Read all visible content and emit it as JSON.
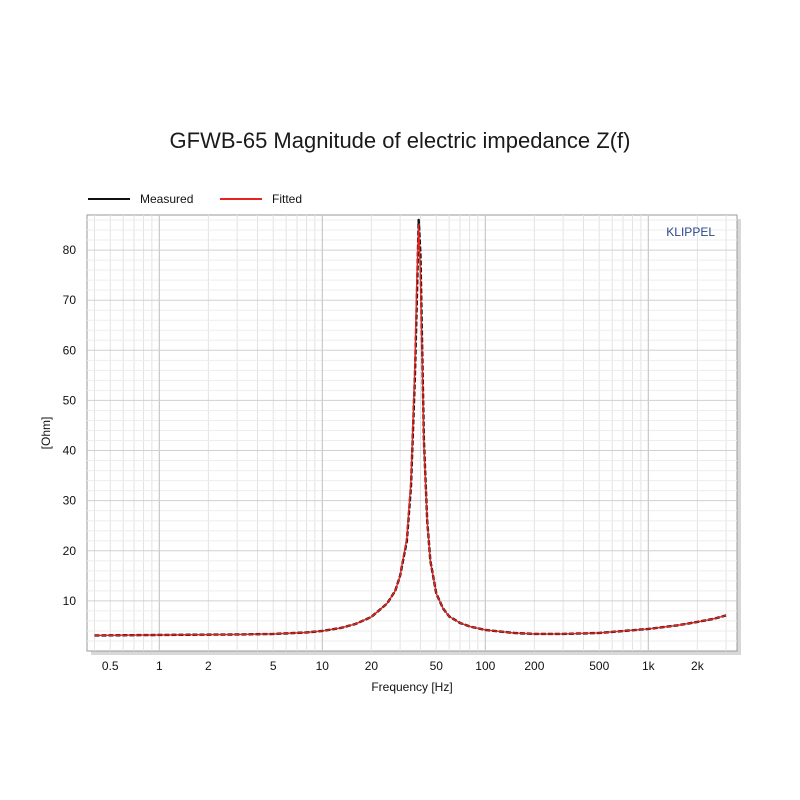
{
  "chart_data": {
    "type": "line",
    "title": "GFWB-65 Magnitude of electric impedance Z(f)",
    "xlabel": "Frequency [Hz]",
    "ylabel": "[Ohm]",
    "x_scale": "log",
    "xlim": [
      0.36,
      3500
    ],
    "ylim": [
      0,
      87
    ],
    "grid": true,
    "legend_position": "top-left",
    "brand": "KLIPPEL",
    "x_ticks": [
      {
        "value": 0.5,
        "label": "0.5"
      },
      {
        "value": 1,
        "label": "1"
      },
      {
        "value": 2,
        "label": "2"
      },
      {
        "value": 5,
        "label": "5"
      },
      {
        "value": 10,
        "label": "10"
      },
      {
        "value": 20,
        "label": "20"
      },
      {
        "value": 50,
        "label": "50"
      },
      {
        "value": 100,
        "label": "100"
      },
      {
        "value": 200,
        "label": "200"
      },
      {
        "value": 500,
        "label": "500"
      },
      {
        "value": 1000,
        "label": "1k"
      },
      {
        "value": 2000,
        "label": "2k"
      }
    ],
    "y_ticks": [
      {
        "value": 10,
        "label": "10"
      },
      {
        "value": 20,
        "label": "20"
      },
      {
        "value": 30,
        "label": "30"
      },
      {
        "value": 40,
        "label": "40"
      },
      {
        "value": 50,
        "label": "50"
      },
      {
        "value": 60,
        "label": "60"
      },
      {
        "value": 70,
        "label": "70"
      },
      {
        "value": 80,
        "label": "80"
      }
    ],
    "series": [
      {
        "name": "Measured",
        "color": "#111111",
        "x": [
          0.4,
          1,
          3,
          5,
          8,
          10,
          13,
          16,
          20,
          25,
          28,
          30,
          33,
          35,
          37,
          38,
          39,
          40,
          41,
          42,
          44,
          46,
          50,
          55,
          60,
          70,
          80,
          100,
          150,
          200,
          300,
          500,
          1000,
          1500,
          2000,
          2500,
          3000
        ],
        "y": [
          3.1,
          3.2,
          3.3,
          3.4,
          3.7,
          4.0,
          4.6,
          5.4,
          6.8,
          9.5,
          12.0,
          15.0,
          22.0,
          33.0,
          55.0,
          70.0,
          86.0,
          79.0,
          60.0,
          42.0,
          26.0,
          18.0,
          11.5,
          8.5,
          6.9,
          5.6,
          4.9,
          4.2,
          3.6,
          3.4,
          3.4,
          3.6,
          4.4,
          5.1,
          5.8,
          6.4,
          7.1
        ]
      },
      {
        "name": "Fitted",
        "color": "#e8231f",
        "x": [
          0.4,
          1,
          3,
          5,
          8,
          10,
          13,
          16,
          20,
          25,
          28,
          30,
          33,
          35,
          37,
          38,
          39,
          40,
          41,
          42,
          44,
          46,
          50,
          55,
          60,
          70,
          80,
          100,
          150,
          200,
          300,
          500,
          1000,
          1500,
          2000,
          2500,
          3000
        ],
        "y": [
          3.1,
          3.2,
          3.3,
          3.4,
          3.7,
          4.0,
          4.6,
          5.4,
          6.8,
          9.5,
          12.0,
          15.0,
          22.5,
          34.0,
          57.0,
          74.0,
          85.0,
          75.0,
          58.0,
          41.0,
          26.0,
          18.0,
          11.5,
          8.5,
          6.9,
          5.6,
          4.9,
          4.2,
          3.6,
          3.4,
          3.4,
          3.6,
          4.4,
          5.1,
          5.8,
          6.4,
          7.1
        ]
      }
    ]
  }
}
